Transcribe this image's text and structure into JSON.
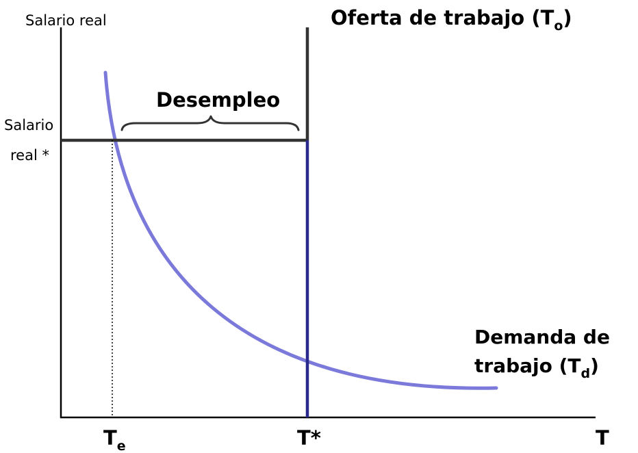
{
  "diagram": {
    "y_axis_label": "Salario real",
    "wage_label_line1": "Salario",
    "wage_label_line2": "real *",
    "supply_label": {
      "main": "Oferta de trabajo (T",
      "subscript": "o",
      "close": ")"
    },
    "demand_label": {
      "line1": "Demanda de",
      "line2_main": "trabajo (T",
      "line2_subscript": "d",
      "line2_close": ")"
    },
    "unemployment_label": "Desempleo",
    "x_tick_te": {
      "main": "T",
      "subscript": "e"
    },
    "x_tick_tstar": "T*",
    "x_axis_label": "T",
    "colors": {
      "axis": "#000000",
      "supply": "#333333",
      "demand": "#7b79d9",
      "supply_segment": "#2a2a8c",
      "dotted": "#000000"
    }
  }
}
